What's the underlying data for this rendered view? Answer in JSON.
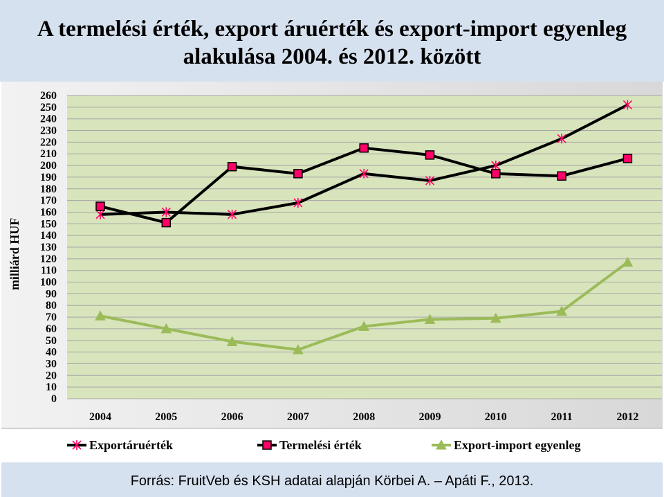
{
  "title": "A termelési érték, export áruérték és export-import egyenleg alakulása 2004. és 2012. között",
  "source": "Forrás: FruitVeb és KSH adatai alapján Körbei A. – Apáti F., 2013.",
  "chart_data": {
    "type": "line",
    "title": "A termelési érték, export áruérték és export-import egyenleg alakulása 2004. és 2012. között",
    "xlabel": "",
    "ylabel": "milliárd HUF",
    "categories": [
      "2004",
      "2005",
      "2006",
      "2007",
      "2008",
      "2009",
      "2010",
      "2011",
      "2012"
    ],
    "ylim": [
      0,
      260
    ],
    "yticks": [
      0,
      10,
      20,
      30,
      40,
      50,
      60,
      70,
      80,
      90,
      100,
      110,
      120,
      130,
      140,
      150,
      160,
      170,
      180,
      190,
      200,
      210,
      220,
      230,
      240,
      250,
      260
    ],
    "grid": true,
    "legend": "bottom",
    "series": [
      {
        "name": "Exportáruérték",
        "values": [
          158,
          160,
          158,
          168,
          193,
          187,
          200,
          223,
          252
        ],
        "color": "#000000",
        "marker": "asterisk",
        "marker_color": "#ff0066"
      },
      {
        "name": "Termelési érték",
        "values": [
          165,
          151,
          199,
          193,
          215,
          209,
          193,
          191,
          206
        ],
        "color": "#000000",
        "marker": "square",
        "marker_color": "#ff0066"
      },
      {
        "name": "Export-import egyenleg",
        "values": [
          71,
          60,
          49,
          42,
          62,
          68,
          69,
          75,
          117
        ],
        "color": "#9bbb59",
        "marker": "triangle",
        "marker_color": "#9bbb59"
      }
    ],
    "plot_background": "#d8e4bc",
    "grid_color": "#a6a6a6"
  }
}
